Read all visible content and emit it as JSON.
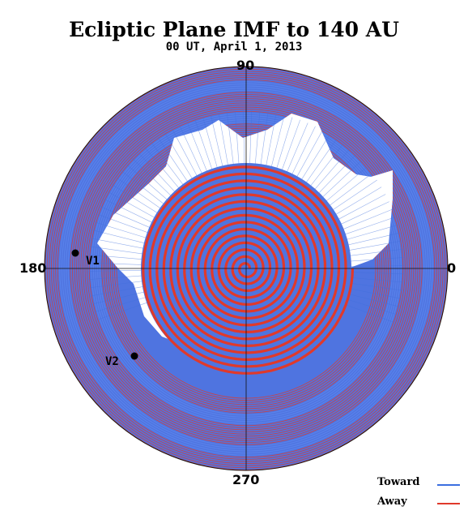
{
  "title": "Ecliptic Plane IMF to 140 AU",
  "subtitle": "00 UT, April  1, 2013",
  "angle_labels": {
    "deg90": "90",
    "deg180": "180",
    "deg0": "0",
    "deg270": "270"
  },
  "spacecraft": {
    "v1": "V1",
    "v2": "V2"
  },
  "legend": {
    "toward_label": "Toward",
    "away_label": "Away",
    "toward_color": "#3b6fe0",
    "away_color": "#e0392b"
  }
}
